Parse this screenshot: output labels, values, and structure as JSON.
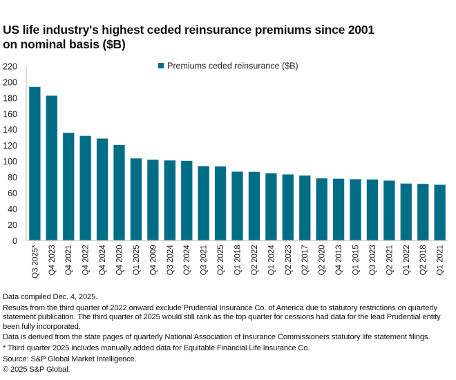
{
  "title_lines": [
    "US life industry's highest ceded reinsurance premiums since 2001",
    "on nominal basis ($B)"
  ],
  "colors": {
    "bar": "#006D87",
    "axis": "#d0d0d0"
  },
  "chart_data": {
    "type": "bar",
    "title": "US life industry's highest ceded reinsurance premiums since 2001 on nominal basis ($B)",
    "xlabel": "",
    "ylabel": "",
    "ylim": [
      0,
      220
    ],
    "yticks": [
      0,
      20,
      40,
      60,
      80,
      100,
      120,
      140,
      160,
      180,
      200,
      220
    ],
    "grid": false,
    "legend": {
      "position": "top-center",
      "entries": [
        "Premiums ceded reinsurance ($B)"
      ]
    },
    "categories": [
      "Q3 2025*",
      "Q4 2023",
      "Q4 2021",
      "Q4 2022",
      "Q4 2024",
      "Q4 2020",
      "Q1 2025",
      "Q4 2009",
      "Q3 2024",
      "Q2 2024",
      "Q3 2021",
      "Q2 2025",
      "Q1 2018",
      "Q2 2022",
      "Q1 2024",
      "Q2 2023",
      "Q2 2017",
      "Q2 2020",
      "Q4 2013",
      "Q1 2015",
      "Q3 2023",
      "Q2 2021",
      "Q1 2022",
      "Q2 2018",
      "Q1 2021"
    ],
    "series": [
      {
        "name": "Premiums ceded reinsurance ($B)",
        "values": [
          194.2,
          183.1,
          136.2,
          132.4,
          129.0,
          120.9,
          104.0,
          102.3,
          101.4,
          100.9,
          94.2,
          93.9,
          87.2,
          87.0,
          85.2,
          83.7,
          82.3,
          78.8,
          78.3,
          77.7,
          77.4,
          75.9,
          72.2,
          71.8,
          70.7
        ]
      }
    ]
  },
  "notes": [
    "Data compiled Dec. 4, 2025.",
    "Results from the third quarter of 2022 onward exclude Prudential Insurance Co. of America due to statutory restrictions on quarterly statement publication. The third quarter of 2025 would still rank as the top quarter for cessions had data for the lead Prudential entity been fully incorporated.",
    "Data is derived from the  state pages of quarterly National Association of Insurance Commissioners statutory life statement filings.",
    "* Third quarter 2025 includes manually added data for Equitable Financial Life Insurance Co.",
    "Source: S&P Global Market Intelligence.",
    "© 2025 S&P Global."
  ]
}
